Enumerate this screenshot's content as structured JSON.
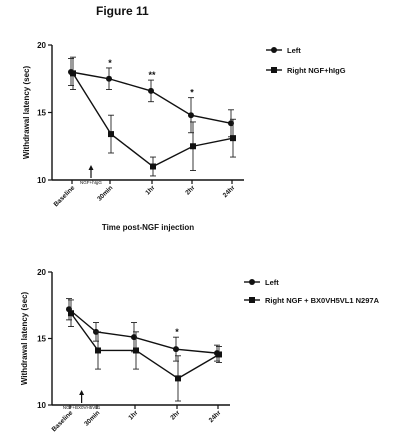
{
  "figure_title": "Figure 11",
  "chart_data": [
    {
      "type": "line",
      "categories": [
        "Baseline",
        "30min",
        "1hr",
        "2hr",
        "24hr"
      ],
      "ylabel": "Withdrawal latency (sec)",
      "xlabel": "Time post-NGF injection",
      "ylim": [
        10,
        20
      ],
      "yticks": [
        "10",
        "15",
        "20"
      ],
      "injection_note": "NGF+hIgG",
      "legend_position": "top-right",
      "significance": [
        "",
        "*",
        "**",
        "*",
        ""
      ],
      "series": [
        {
          "name": "Left",
          "marker": "circle",
          "values": [
            18.0,
            17.5,
            16.6,
            14.8,
            14.2
          ],
          "errors": [
            1.0,
            0.8,
            0.8,
            1.3,
            1.0
          ]
        },
        {
          "name": "Right NGF+hIgG",
          "marker": "square",
          "values": [
            17.9,
            13.4,
            11.0,
            12.5,
            13.1
          ],
          "errors": [
            1.2,
            1.4,
            0.7,
            1.8,
            1.4
          ]
        }
      ]
    },
    {
      "type": "line",
      "categories": [
        "Baseline",
        "30min",
        "1hr",
        "2hr",
        "24hr"
      ],
      "ylabel": "Withdrawal latency (sec)",
      "xlabel": "",
      "ylim": [
        10,
        20
      ],
      "yticks": [
        "10",
        "15",
        "20"
      ],
      "injection_note": "NGF+BX0VH5VL1",
      "legend_position": "right",
      "significance": [
        "",
        "",
        "",
        "*",
        ""
      ],
      "series": [
        {
          "name": "Left",
          "marker": "circle",
          "values": [
            17.2,
            15.5,
            15.1,
            14.2,
            13.9
          ],
          "errors": [
            0.8,
            0.7,
            1.1,
            0.9,
            0.6
          ]
        },
        {
          "name": "Right NGF + BX0VH5VL1 N297A",
          "marker": "square",
          "values": [
            16.9,
            14.1,
            14.1,
            12.0,
            13.8
          ],
          "errors": [
            1.0,
            1.4,
            1.4,
            1.7,
            0.6
          ]
        }
      ]
    }
  ]
}
